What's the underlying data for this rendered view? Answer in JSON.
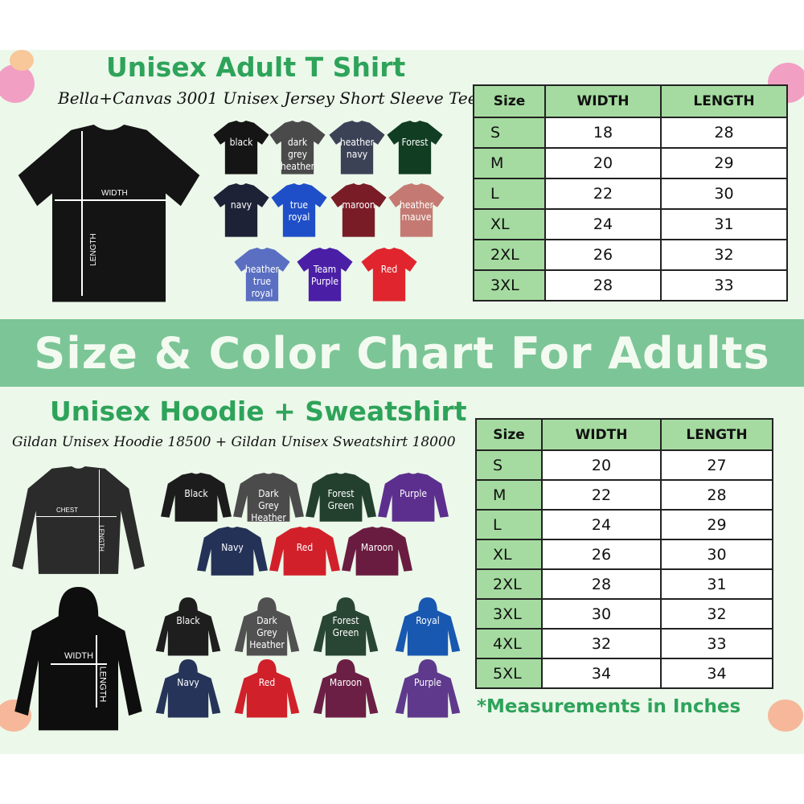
{
  "banner": "Size & Color Chart For Adults",
  "colors": {
    "panel": "#ecf8ea",
    "banner": "#7cc596",
    "title_green": "#2ea35a",
    "header_green": "#a5dba0"
  },
  "tshirt": {
    "title": "Unisex Adult T Shirt",
    "subtitle": "Bella+Canvas 3001 Unisex Jersey Short Sleeve Tee",
    "diagram": {
      "width_label": "WIDTH",
      "length_label": "LENGTH"
    },
    "swatches": [
      {
        "label": "black",
        "color": "#151515"
      },
      {
        "label": "dark\ngrey\nheather",
        "color": "#4a4a4a"
      },
      {
        "label": "heather\nnavy",
        "color": "#3c4256"
      },
      {
        "label": "Forest",
        "color": "#113d22"
      },
      {
        "label": "navy",
        "color": "#1e2236"
      },
      {
        "label": "true\nroyal",
        "color": "#1f4fc8"
      },
      {
        "label": "maroon",
        "color": "#7a1c26"
      },
      {
        "label": "heather\nmauve",
        "color": "#c47a72"
      },
      {
        "label": "heather\ntrue\nroyal",
        "color": "#5a6fc2"
      },
      {
        "label": "Team\nPurple",
        "color": "#4a1fa6"
      },
      {
        "label": "Red",
        "color": "#e0252e"
      }
    ],
    "table": {
      "headers": [
        "Size",
        "WIDTH",
        "LENGTH"
      ],
      "rows": [
        [
          "S",
          "18",
          "28"
        ],
        [
          "M",
          "20",
          "29"
        ],
        [
          "L",
          "22",
          "30"
        ],
        [
          "XL",
          "24",
          "31"
        ],
        [
          "2XL",
          "26",
          "32"
        ],
        [
          "3XL",
          "28",
          "33"
        ]
      ]
    }
  },
  "hoodie": {
    "title": "Unisex Hoodie + Sweatshirt",
    "subtitle": "Gildan Unisex Hoodie 18500 + Gildan Unisex Sweatshirt 18000",
    "sweatshirt_diagram": {
      "width_label": "CHEST",
      "length_label": "LENGTH"
    },
    "hoodie_diagram": {
      "width_label": "WIDTH",
      "length_label": "LENGTH"
    },
    "sweatshirts": [
      {
        "label": "Black",
        "color": "#1c1c1c"
      },
      {
        "label": "Dark\nGrey\nHeather",
        "color": "#4b4b4b"
      },
      {
        "label": "Forest\nGreen",
        "color": "#23402e"
      },
      {
        "label": "Purple",
        "color": "#5c2f8e"
      },
      {
        "label": "Navy",
        "color": "#243258"
      },
      {
        "label": "Red",
        "color": "#d2202a"
      },
      {
        "label": "Maroon",
        "color": "#6a1c40"
      }
    ],
    "hoodies": [
      {
        "label": "Black",
        "color": "#1e1e1e"
      },
      {
        "label": "Dark\nGrey\nHeather",
        "color": "#515151"
      },
      {
        "label": "Forest\nGreen",
        "color": "#294634"
      },
      {
        "label": "Royal",
        "color": "#1858b0"
      },
      {
        "label": "Navy",
        "color": "#26345a"
      },
      {
        "label": "Red",
        "color": "#d0202a"
      },
      {
        "label": "Maroon",
        "color": "#6c1f45"
      },
      {
        "label": "Purple",
        "color": "#5f3a8c"
      }
    ],
    "table": {
      "headers": [
        "Size",
        "WIDTH",
        "LENGTH"
      ],
      "rows": [
        [
          "S",
          "20",
          "27"
        ],
        [
          "M",
          "22",
          "28"
        ],
        [
          "L",
          "24",
          "29"
        ],
        [
          "XL",
          "26",
          "30"
        ],
        [
          "2XL",
          "28",
          "31"
        ],
        [
          "3XL",
          "30",
          "32"
        ],
        [
          "4XL",
          "32",
          "33"
        ],
        [
          "5XL",
          "34",
          "34"
        ]
      ]
    },
    "note": "*Measurements in Inches"
  }
}
